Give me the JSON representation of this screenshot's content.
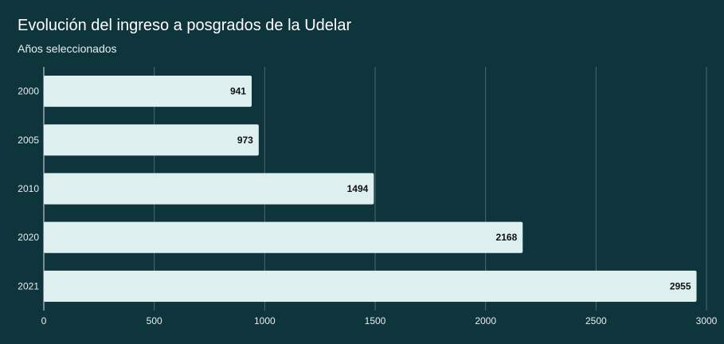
{
  "chart_data": {
    "type": "bar",
    "orientation": "horizontal",
    "title": "Evolución del ingreso a posgrados de la Udelar",
    "subtitle": "Años seleccionados",
    "categories": [
      "2000",
      "2005",
      "2010",
      "2020",
      "2021"
    ],
    "values": [
      941,
      973,
      1494,
      2168,
      2955
    ],
    "x_ticks": [
      "0",
      "500",
      "1000",
      "1500",
      "2000",
      "2500",
      "3000"
    ],
    "xlim": [
      0,
      3000
    ],
    "grid": true,
    "data_labels": true,
    "bar_color": "#ddf0ef",
    "background_color": "#0e343c",
    "grid_color": "#4c6a70"
  }
}
